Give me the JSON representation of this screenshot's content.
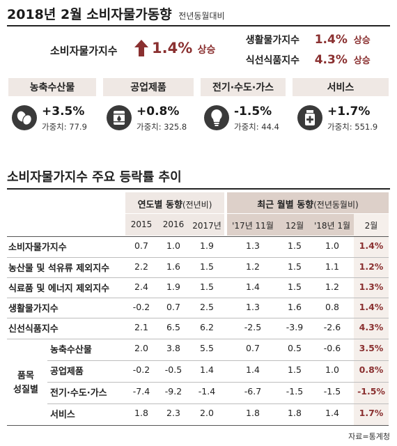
{
  "header": {
    "title": "2018년 2월 소비자물가동향",
    "subtitle": "전년동월대비"
  },
  "summary": {
    "cpi_label": "소비자물가지수",
    "cpi_value": "1.4%",
    "cpi_tag": "상승",
    "living_label": "생활물가지수",
    "living_value": "1.4%",
    "living_tag": "상승",
    "fresh_label": "식선식품지수",
    "fresh_value": "4.3%",
    "fresh_tag": "상승"
  },
  "categories": [
    {
      "name": "농축수산물",
      "change": "+3.5%",
      "weight_label": "가중치:",
      "weight": "77.9",
      "icon": "eggs-icon"
    },
    {
      "name": "공업제품",
      "change": "+0.8%",
      "weight_label": "가중치:",
      "weight": "325.8",
      "icon": "oil-barrel-icon"
    },
    {
      "name": "전기·수도·가스",
      "change": "-1.5%",
      "weight_label": "가중치:",
      "weight": "44.4",
      "icon": "lightbulb-icon"
    },
    {
      "name": "서비스",
      "change": "+1.7%",
      "weight_label": "가중치:",
      "weight": "551.9",
      "icon": "medicine-icon"
    }
  ],
  "table": {
    "title": "소비자물가지수 주요 등락률 추이",
    "group_annual": "연도별 동향",
    "group_annual_note": "(전년비)",
    "group_monthly": "최근 월별 동향",
    "group_monthly_note": "(전년동월비)",
    "columns": [
      "2015",
      "2016",
      "2017년",
      "'17년 11월",
      "12월",
      "'18년 1월",
      "2월"
    ],
    "group_label_1": "품목",
    "group_label_2": "성질별",
    "rows": [
      {
        "label": "소비자물가지수",
        "values": [
          "0.7",
          "1.0",
          "1.9",
          "1.3",
          "1.5",
          "1.0",
          "1.4%"
        ]
      },
      {
        "label": "농산물 및 석유류 제외지수",
        "values": [
          "2.2",
          "1.6",
          "1.5",
          "1.2",
          "1.5",
          "1.1",
          "1.2%"
        ]
      },
      {
        "label": "식료품 및 에너지 제외지수",
        "values": [
          "2.4",
          "1.9",
          "1.5",
          "1.4",
          "1.5",
          "1.2",
          "1.3%"
        ]
      },
      {
        "label": "생활물가지수",
        "values": [
          "-0.2",
          "0.7",
          "2.5",
          "1.3",
          "1.6",
          "0.8",
          "1.4%"
        ]
      },
      {
        "label": "신선식품지수",
        "values": [
          "2.1",
          "6.5",
          "6.2",
          "-2.5",
          "-3.9",
          "-2.6",
          "4.3%"
        ]
      },
      {
        "label": "농축수산물",
        "values": [
          "2.0",
          "3.8",
          "5.5",
          "0.7",
          "0.5",
          "-0.6",
          "3.5%"
        ]
      },
      {
        "label": "공업제품",
        "values": [
          "-0.2",
          "-0.5",
          "1.4",
          "1.4",
          "1.5",
          "1.0",
          "0.8%"
        ]
      },
      {
        "label": "전기·수도·가스",
        "values": [
          "-7.4",
          "-9.2",
          "-1.4",
          "-6.7",
          "-1.5",
          "-1.5",
          "-1.5%"
        ]
      },
      {
        "label": "서비스",
        "values": [
          "1.8",
          "2.3",
          "2.0",
          "1.8",
          "1.8",
          "1.4",
          "1.7%"
        ]
      }
    ],
    "source": "자료=통계청"
  },
  "colors": {
    "accent": "#8a3030",
    "header_bg": "#efe8e4",
    "header_bg_dark": "#ddd0c9",
    "icon_dark": "#3a3a3a"
  },
  "chart_data": {
    "type": "table",
    "title": "소비자물가지수 주요 등락률 추이",
    "categories": [
      "2015",
      "2016",
      "2017년",
      "'17년 11월",
      "12월",
      "'18년 1월",
      "2월"
    ],
    "series": [
      {
        "name": "소비자물가지수",
        "values": [
          0.7,
          1.0,
          1.9,
          1.3,
          1.5,
          1.0,
          1.4
        ]
      },
      {
        "name": "농산물 및 석유류 제외지수",
        "values": [
          2.2,
          1.6,
          1.5,
          1.2,
          1.5,
          1.1,
          1.2
        ]
      },
      {
        "name": "식료품 및 에너지 제외지수",
        "values": [
          2.4,
          1.9,
          1.5,
          1.4,
          1.5,
          1.2,
          1.3
        ]
      },
      {
        "name": "생활물가지수",
        "values": [
          -0.2,
          0.7,
          2.5,
          1.3,
          1.6,
          0.8,
          1.4
        ]
      },
      {
        "name": "신선식품지수",
        "values": [
          2.1,
          6.5,
          6.2,
          -2.5,
          -3.9,
          -2.6,
          4.3
        ]
      },
      {
        "name": "농축수산물",
        "values": [
          2.0,
          3.8,
          5.5,
          0.7,
          0.5,
          -0.6,
          3.5
        ]
      },
      {
        "name": "공업제품",
        "values": [
          -0.2,
          -0.5,
          1.4,
          1.4,
          1.5,
          1.0,
          0.8
        ]
      },
      {
        "name": "전기·수도·가스",
        "values": [
          -7.4,
          -9.2,
          -1.4,
          -6.7,
          -1.5,
          -1.5,
          -1.5
        ]
      },
      {
        "name": "서비스",
        "values": [
          1.8,
          2.3,
          2.0,
          1.8,
          1.8,
          1.4,
          1.7
        ]
      }
    ]
  }
}
